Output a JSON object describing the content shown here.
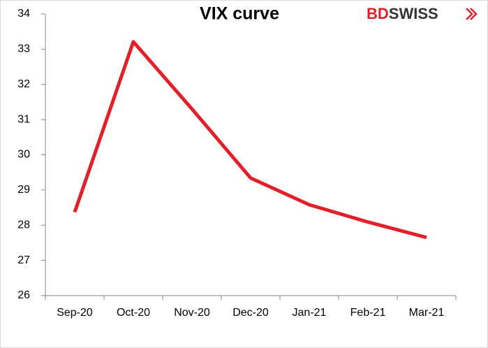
{
  "chart_data": {
    "type": "line",
    "title": "VIX curve",
    "logo": [
      "BD",
      "SWISS"
    ],
    "categories": [
      "Sep-20",
      "Oct-20",
      "Nov-20",
      "Dec-20",
      "Jan-21",
      "Feb-21",
      "Mar-21"
    ],
    "values": [
      28.37,
      33.21,
      31.3,
      29.34,
      28.58,
      28.09,
      27.65
    ],
    "color": "#e3202a",
    "ylim": [
      26,
      34
    ],
    "yticks": [
      26,
      27,
      28,
      29,
      30,
      31,
      32,
      33,
      34
    ]
  }
}
